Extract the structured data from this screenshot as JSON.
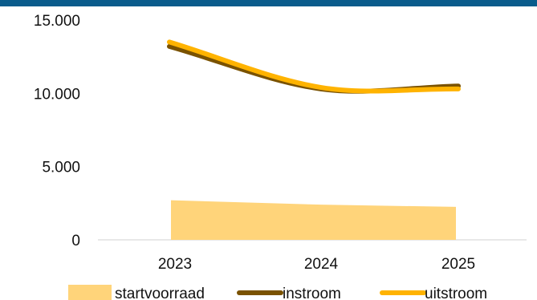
{
  "colors": {
    "top_bar": "#0a5c8c",
    "startvoorraad": "#ffd47a",
    "instroom": "#7a5200",
    "uitstroom": "#ffb300",
    "axis": "#d0d0d0"
  },
  "chart_data": {
    "type": "area",
    "categories": [
      "2023",
      "2024",
      "2025"
    ],
    "ylim": [
      0,
      15000
    ],
    "yticks": [
      0,
      5000,
      10000,
      15000
    ],
    "ytick_labels": [
      "0",
      "5.000",
      "10.000",
      "15.000"
    ],
    "grid": false,
    "legend_position": "bottom",
    "series": [
      {
        "name": "startvoorraad",
        "kind": "area",
        "values": [
          2700,
          2400,
          2250
        ]
      },
      {
        "name": "instroom",
        "kind": "smooth-line",
        "values": [
          13200,
          10300,
          10500
        ]
      },
      {
        "name": "uitstroom",
        "kind": "smooth-line",
        "values": [
          13500,
          10400,
          10300
        ]
      }
    ]
  }
}
